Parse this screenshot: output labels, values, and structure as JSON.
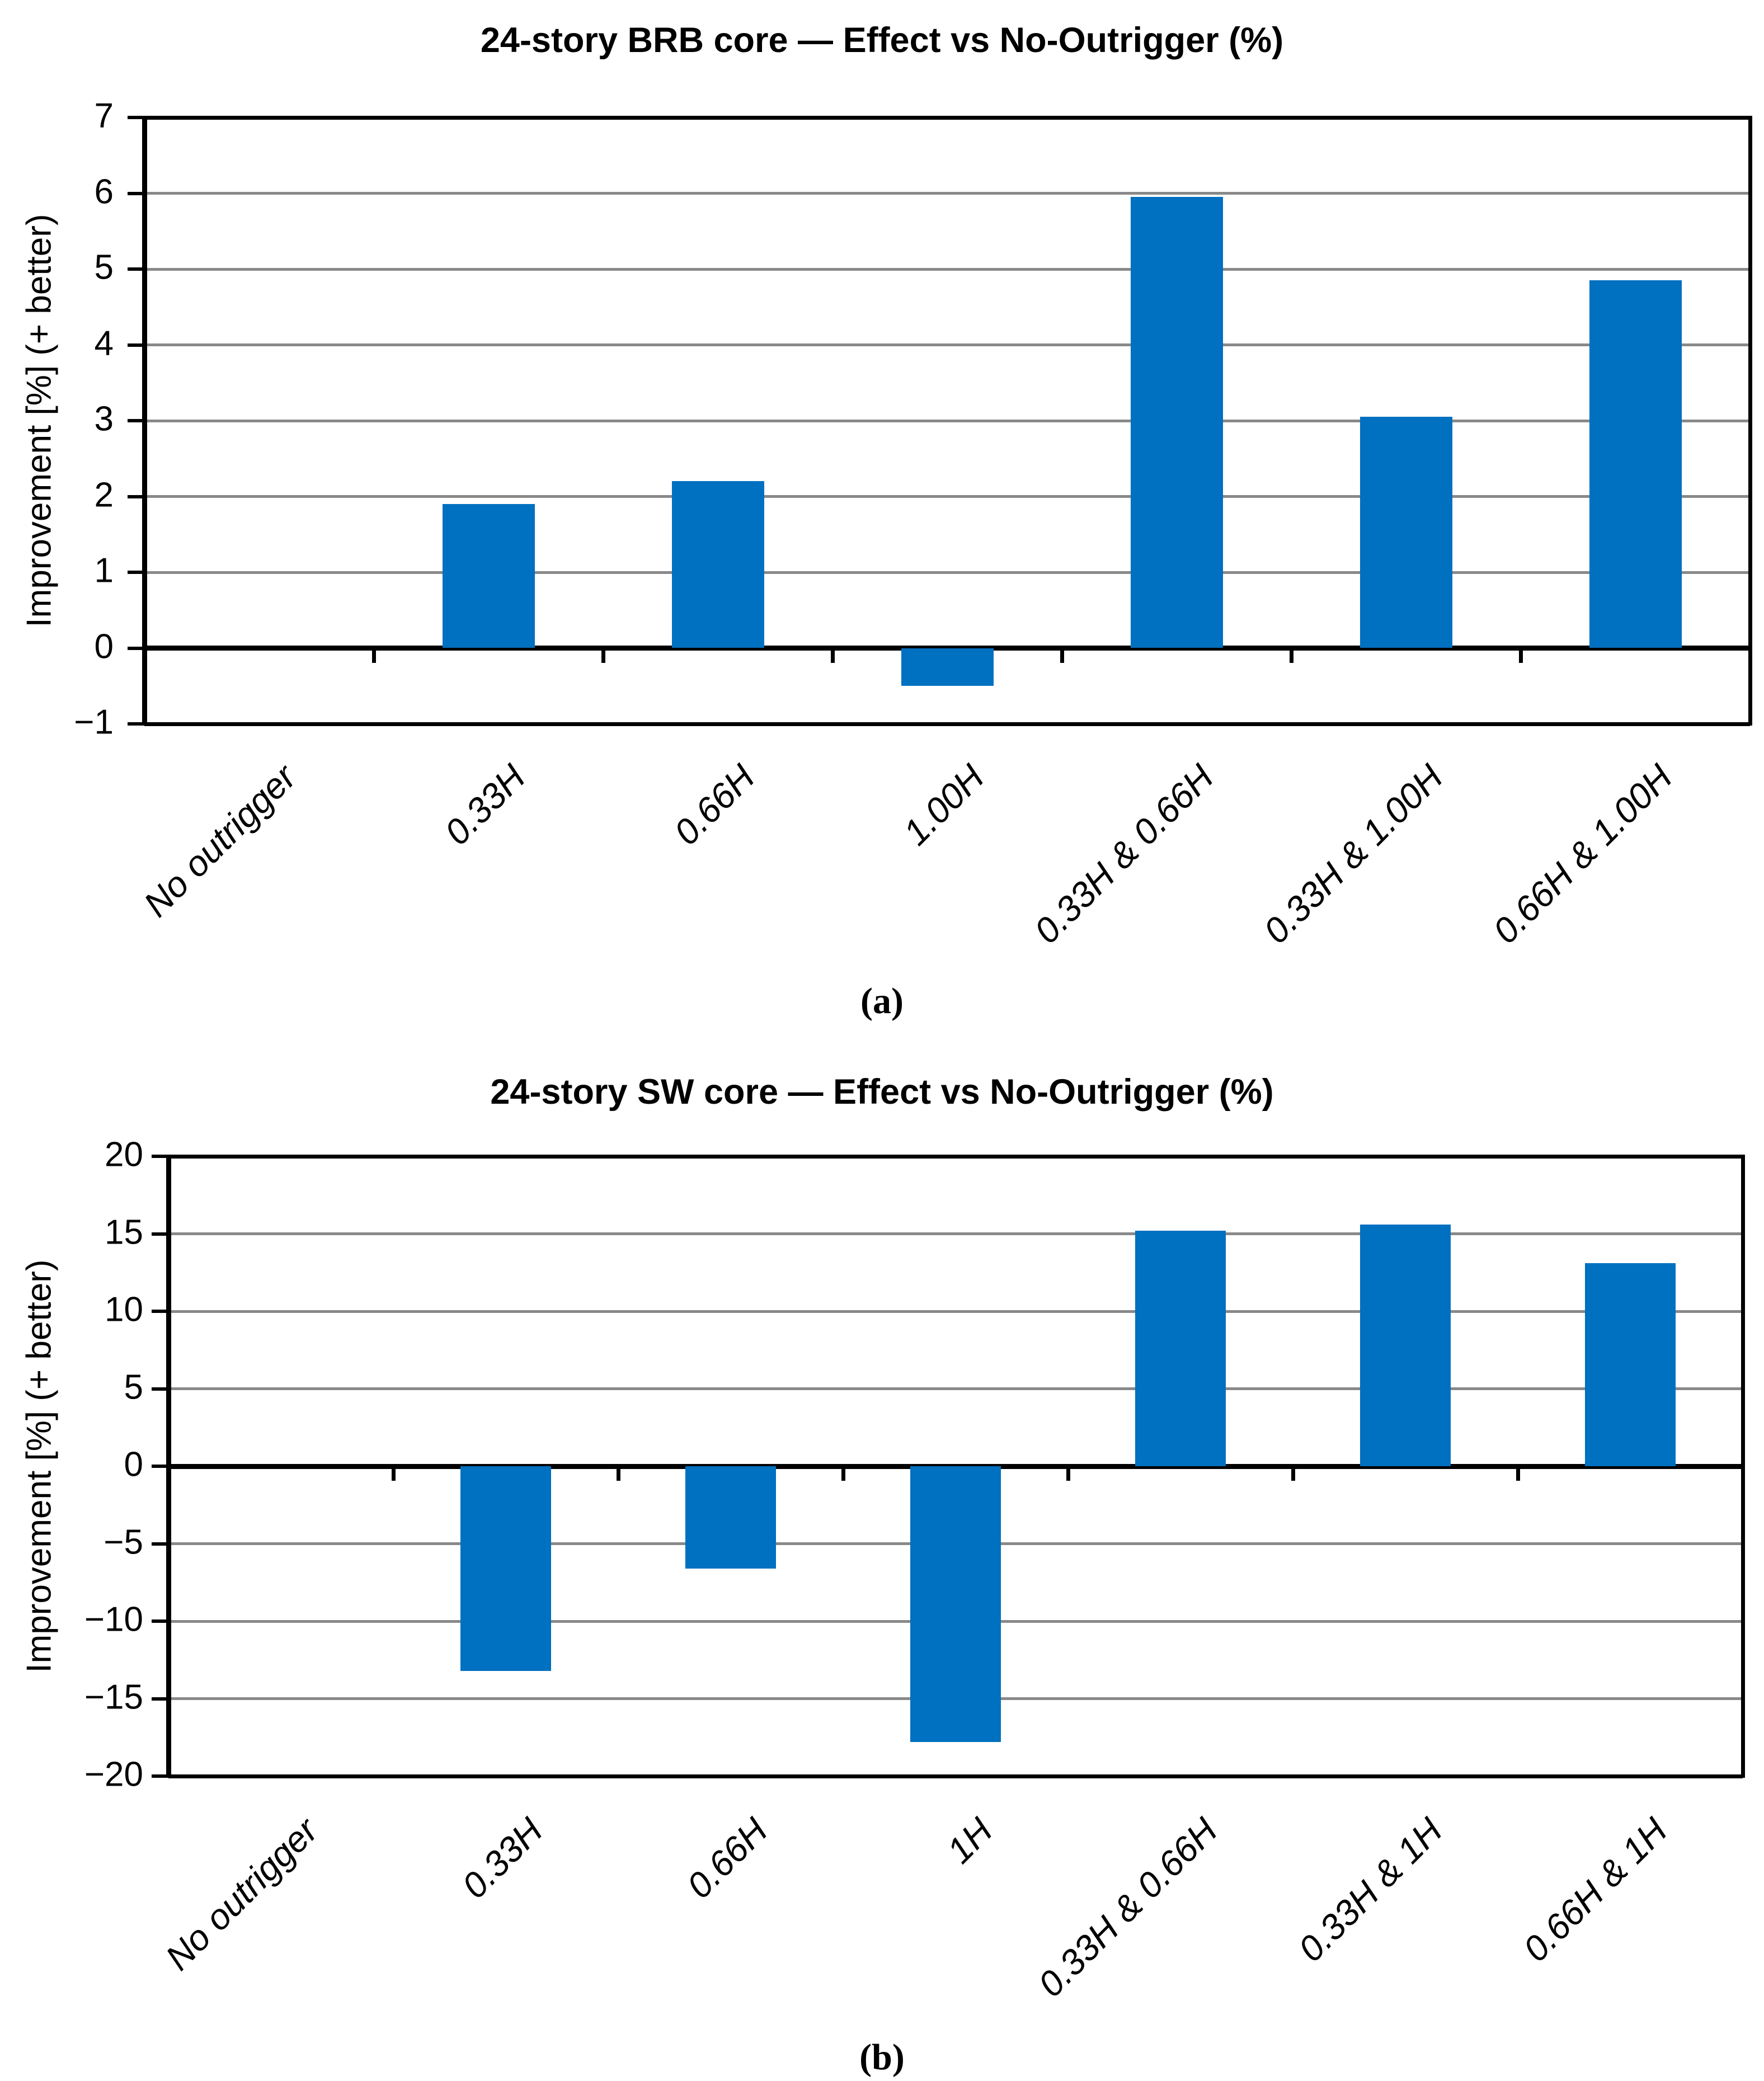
{
  "figure": {
    "captions": [
      "(a)",
      "(b)"
    ]
  },
  "chart_data": [
    {
      "type": "bar",
      "title": "24-story BRB core — Effect vs No-Outrigger (%)",
      "ylabel": "Improvement [%] (+ better)",
      "categories": [
        "No outrigger",
        "0.33H",
        "0.66H",
        "1.00H",
        "0.33H & 0.66H",
        "0.33H & 1.00H",
        "0.66H & 1.00H"
      ],
      "values": [
        0,
        1.9,
        2.2,
        -0.5,
        5.95,
        3.05,
        4.85
      ],
      "ylim": [
        -1,
        7
      ],
      "ytick_step": 1,
      "bar_color": "#0070C0",
      "gridline_color": "#898989",
      "grid": true,
      "legend": "none",
      "caption": "(a)"
    },
    {
      "type": "bar",
      "title": "24-story SW core — Effect vs No-Outrigger (%)",
      "ylabel": "Improvement [%] (+ better)",
      "categories": [
        "No outrigger",
        "0.33H",
        "0.66H",
        "1H",
        "0.33H & 0.66H",
        "0.33H & 1H",
        "0.66H & 1H"
      ],
      "values": [
        0,
        -13.2,
        -6.6,
        -17.8,
        15.2,
        15.6,
        13.1
      ],
      "ylim": [
        -20,
        20
      ],
      "ytick_step": 5,
      "bar_color": "#0070C0",
      "gridline_color": "#898989",
      "grid": true,
      "legend": "none",
      "caption": "(b)"
    }
  ]
}
